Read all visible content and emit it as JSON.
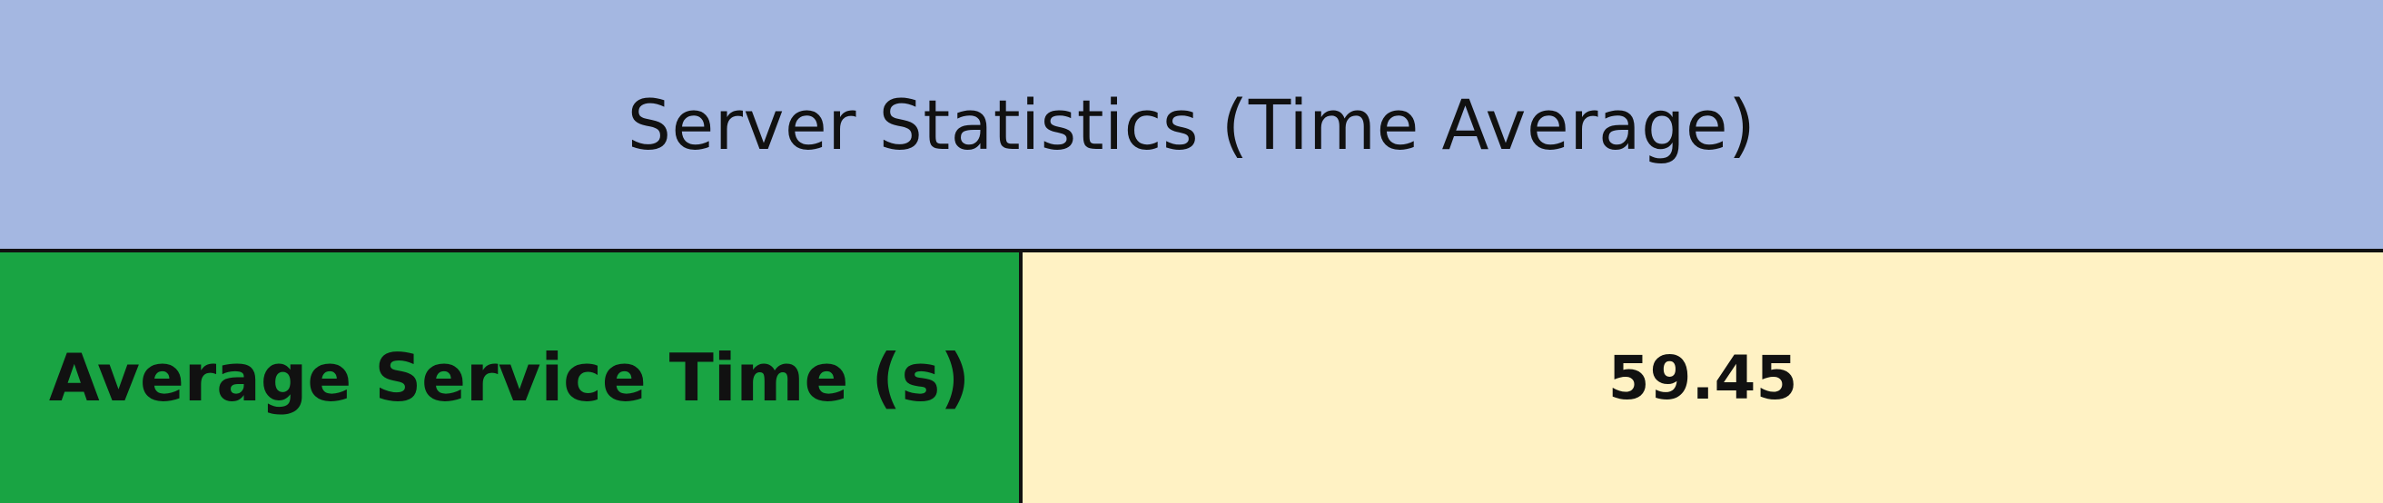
{
  "table": {
    "title": "Server Statistics (Time Average)",
    "rows": [
      {
        "label": "Average Service Time (s)",
        "value": "59.45"
      }
    ]
  },
  "colors": {
    "header_bg": "#a4b7e1",
    "label_bg": "#19a443",
    "value_bg": "#fff2c4",
    "border": "#111111"
  }
}
